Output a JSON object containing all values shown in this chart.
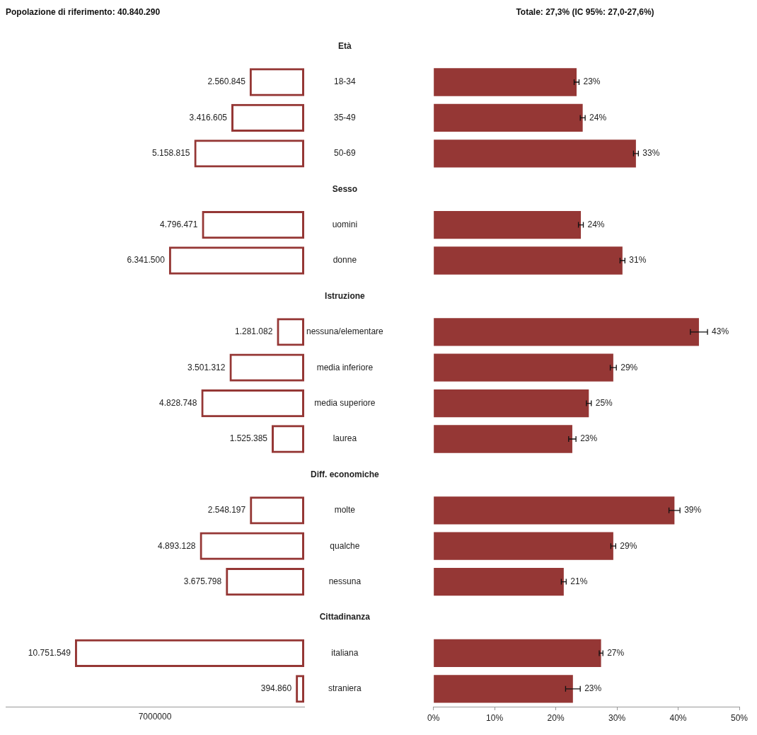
{
  "chart_data": [
    {
      "type": "bar",
      "orientation": "horizontal",
      "title": "Popolazione di riferimento: 40.840.290",
      "categories": [
        "Età",
        "18-34",
        "35-49",
        "50-69",
        "Sesso",
        "uomini",
        "donne",
        "Istruzione",
        "nessuna/elementare",
        "media inferiore",
        "media superiore",
        "laurea",
        "Diff. economiche",
        "molte",
        "qualche",
        "nessuna",
        "Cittadinanza",
        "italiana",
        "straniera"
      ],
      "series": [
        {
          "color": "#953735",
          "values": [
            null,
            2560845,
            3416605,
            5158815,
            null,
            4796471,
            6341500,
            null,
            1281082,
            3501312,
            4828748,
            1525385,
            null,
            2548197,
            4893128,
            3675798,
            null,
            10751549,
            394860
          ],
          "value_labels": [
            null,
            "2.560.845",
            "3.416.605",
            "5.158.815",
            null,
            "4.796.471",
            "6.341.500",
            null,
            "1.281.082",
            "3.501.312",
            "4.828.748",
            "1.525.385",
            null,
            "2.548.197",
            "4.893.128",
            "3.675.798",
            null,
            "10.751.549",
            "394.860"
          ]
        }
      ],
      "xlim": [
        14000000,
        0
      ],
      "tick_labels": "y",
      "annotations": [
        "7000000"
      ]
    },
    {
      "type": "bar",
      "orientation": "horizontal",
      "title": "Totale: 27,3% (IC 95%: 27,0-27,6%)",
      "tick_labels": "x",
      "categories": [
        null,
        null,
        null,
        null,
        null,
        null,
        null,
        null,
        null,
        null,
        null,
        null,
        null,
        null,
        null,
        null,
        null,
        null,
        null
      ],
      "series": [
        {
          "color": "#953735",
          "values": [
            null,
            23.4,
            24.4,
            33.1,
            null,
            24.1,
            30.9,
            null,
            43.4,
            29.4,
            25.4,
            22.7,
            null,
            39.4,
            29.4,
            21.3,
            null,
            27.4,
            22.8
          ],
          "errors": [
            null,
            0.4,
            0.4,
            0.4,
            null,
            0.4,
            0.4,
            null,
            1.4,
            0.5,
            0.4,
            0.6,
            null,
            0.9,
            0.4,
            0.4,
            null,
            0.3,
            1.2
          ],
          "value_labels": [
            null,
            "23%",
            "24%",
            "33%",
            null,
            "24%",
            "31%",
            null,
            "43%",
            "29%",
            "25%",
            "23%",
            null,
            "39%",
            "29%",
            "21%",
            null,
            "27%",
            "23%"
          ]
        }
      ],
      "xlim": [
        0,
        50
      ],
      "xticks": [
        {
          "value": 0,
          "label": "0%"
        },
        {
          "value": 10,
          "label": "10%"
        },
        {
          "value": 20,
          "label": "20%"
        },
        {
          "value": 30,
          "label": "30%"
        },
        {
          "value": 40,
          "label": "40%"
        },
        {
          "value": 50,
          "label": "50%"
        }
      ]
    }
  ]
}
